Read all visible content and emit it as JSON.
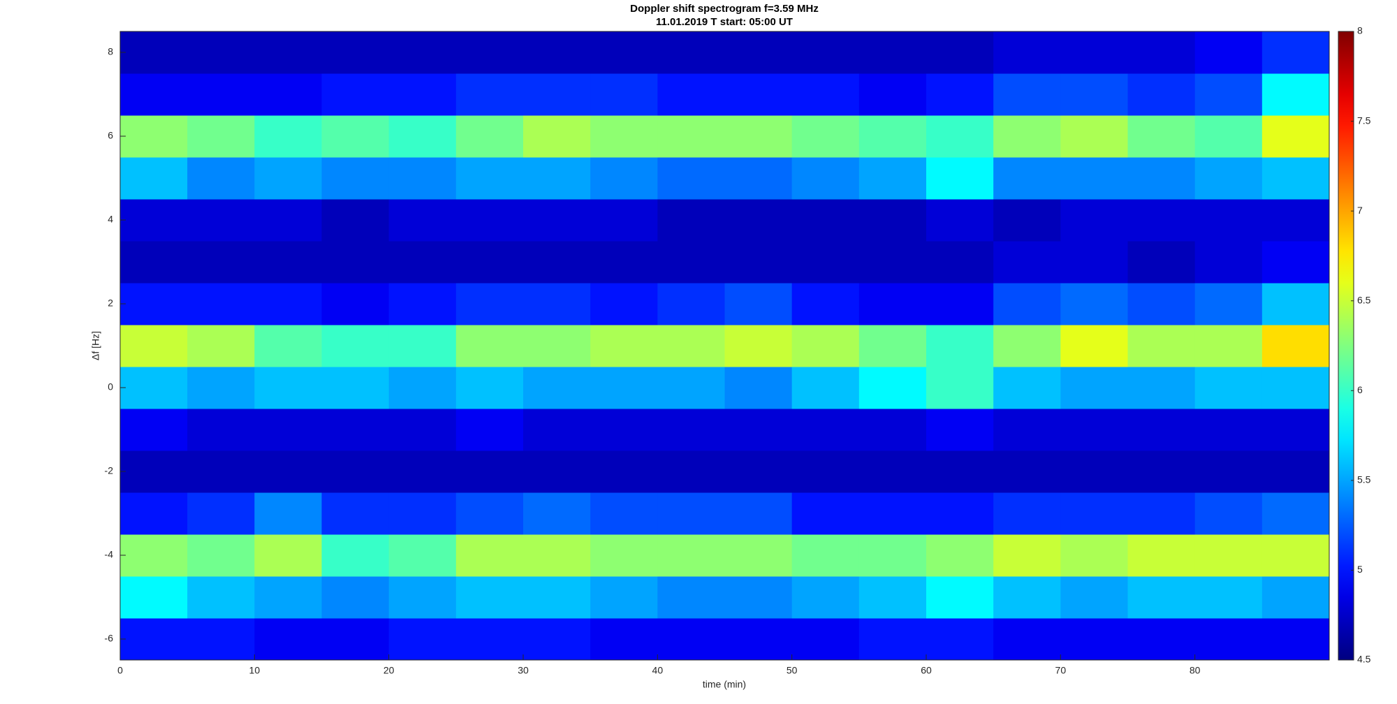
{
  "chart_data": {
    "type": "heatmap",
    "title": "Doppler shift spectrogram f=3.59 MHz",
    "subtitle": "11.01.2019   T start: 05:00 UT",
    "xlabel": "time (min)",
    "ylabel": "Δf [Hz]",
    "xlim": [
      0,
      90
    ],
    "ylim": [
      -6.5,
      8.5
    ],
    "xticks": [
      0,
      10,
      20,
      30,
      40,
      50,
      60,
      70,
      80
    ],
    "yticks": [
      -6,
      -4,
      -2,
      0,
      2,
      4,
      6,
      8
    ],
    "clim": [
      4.5,
      8
    ],
    "cticks": [
      4.5,
      5,
      5.5,
      6,
      6.5,
      7,
      7.5,
      8
    ],
    "colormap": "jet",
    "xbins": [
      0,
      5,
      10,
      15,
      20,
      25,
      30,
      35,
      40,
      45,
      50,
      55,
      60,
      65,
      70,
      75,
      80,
      85,
      90
    ],
    "ybins": [
      -6.5,
      -5.5,
      -4.5,
      -3.5,
      -2.5,
      -1.5,
      -0.5,
      0.5,
      1.5,
      2.5,
      3.5,
      4.5,
      5.5,
      6.5,
      7.5,
      8.5
    ],
    "z": [
      [
        5.0,
        5.0,
        4.9,
        4.9,
        5.0,
        5.0,
        5.0,
        4.9,
        4.9,
        4.9,
        4.9,
        5.0,
        5.0,
        4.9,
        4.9,
        4.9,
        4.9,
        4.9
      ],
      [
        5.8,
        5.6,
        5.5,
        5.4,
        5.5,
        5.6,
        5.6,
        5.5,
        5.4,
        5.4,
        5.5,
        5.6,
        5.8,
        5.6,
        5.5,
        5.6,
        5.6,
        5.5
      ],
      [
        6.3,
        6.2,
        6.4,
        6.0,
        6.1,
        6.4,
        6.4,
        6.3,
        6.3,
        6.3,
        6.2,
        6.2,
        6.3,
        6.5,
        6.4,
        6.5,
        6.5,
        6.5
      ],
      [
        5.0,
        5.1,
        5.4,
        5.1,
        5.1,
        5.2,
        5.3,
        5.2,
        5.2,
        5.2,
        5.0,
        5.0,
        5.0,
        5.1,
        5.1,
        5.1,
        5.2,
        5.3
      ],
      [
        4.7,
        4.7,
        4.7,
        4.7,
        4.7,
        4.7,
        4.7,
        4.7,
        4.7,
        4.7,
        4.7,
        4.7,
        4.7,
        4.7,
        4.7,
        4.7,
        4.7,
        4.7
      ],
      [
        4.9,
        4.8,
        4.8,
        4.8,
        4.8,
        4.9,
        4.8,
        4.8,
        4.8,
        4.8,
        4.8,
        4.8,
        4.9,
        4.8,
        4.8,
        4.8,
        4.8,
        4.8
      ],
      [
        5.6,
        5.5,
        5.6,
        5.6,
        5.5,
        5.6,
        5.5,
        5.5,
        5.5,
        5.4,
        5.6,
        5.8,
        6.0,
        5.6,
        5.5,
        5.5,
        5.6,
        5.6
      ],
      [
        6.5,
        6.4,
        6.1,
        6.0,
        6.0,
        6.3,
        6.3,
        6.4,
        6.4,
        6.5,
        6.4,
        6.2,
        6.0,
        6.3,
        6.6,
        6.4,
        6.4,
        6.8
      ],
      [
        5.0,
        5.0,
        5.0,
        4.9,
        5.0,
        5.1,
        5.1,
        5.0,
        5.1,
        5.2,
        5.0,
        4.9,
        4.9,
        5.2,
        5.3,
        5.2,
        5.3,
        5.6
      ],
      [
        4.7,
        4.7,
        4.7,
        4.7,
        4.7,
        4.7,
        4.7,
        4.7,
        4.7,
        4.7,
        4.7,
        4.7,
        4.7,
        4.8,
        4.8,
        4.7,
        4.8,
        4.9
      ],
      [
        4.8,
        4.8,
        4.8,
        4.7,
        4.8,
        4.8,
        4.8,
        4.8,
        4.7,
        4.7,
        4.7,
        4.7,
        4.8,
        4.7,
        4.8,
        4.8,
        4.8,
        4.8
      ],
      [
        5.6,
        5.4,
        5.5,
        5.4,
        5.4,
        5.5,
        5.5,
        5.4,
        5.3,
        5.3,
        5.4,
        5.5,
        5.8,
        5.4,
        5.4,
        5.4,
        5.5,
        5.6
      ],
      [
        6.3,
        6.2,
        6.0,
        6.1,
        6.0,
        6.2,
        6.4,
        6.3,
        6.3,
        6.3,
        6.2,
        6.1,
        6.0,
        6.3,
        6.4,
        6.2,
        6.1,
        6.6
      ],
      [
        4.9,
        4.9,
        4.9,
        5.0,
        5.0,
        5.1,
        5.1,
        5.1,
        5.0,
        5.0,
        5.0,
        4.9,
        5.0,
        5.2,
        5.2,
        5.1,
        5.2,
        5.8
      ],
      [
        4.7,
        4.7,
        4.7,
        4.7,
        4.7,
        4.7,
        4.7,
        4.7,
        4.7,
        4.7,
        4.7,
        4.7,
        4.7,
        4.8,
        4.8,
        4.8,
        4.9,
        5.1
      ]
    ]
  }
}
